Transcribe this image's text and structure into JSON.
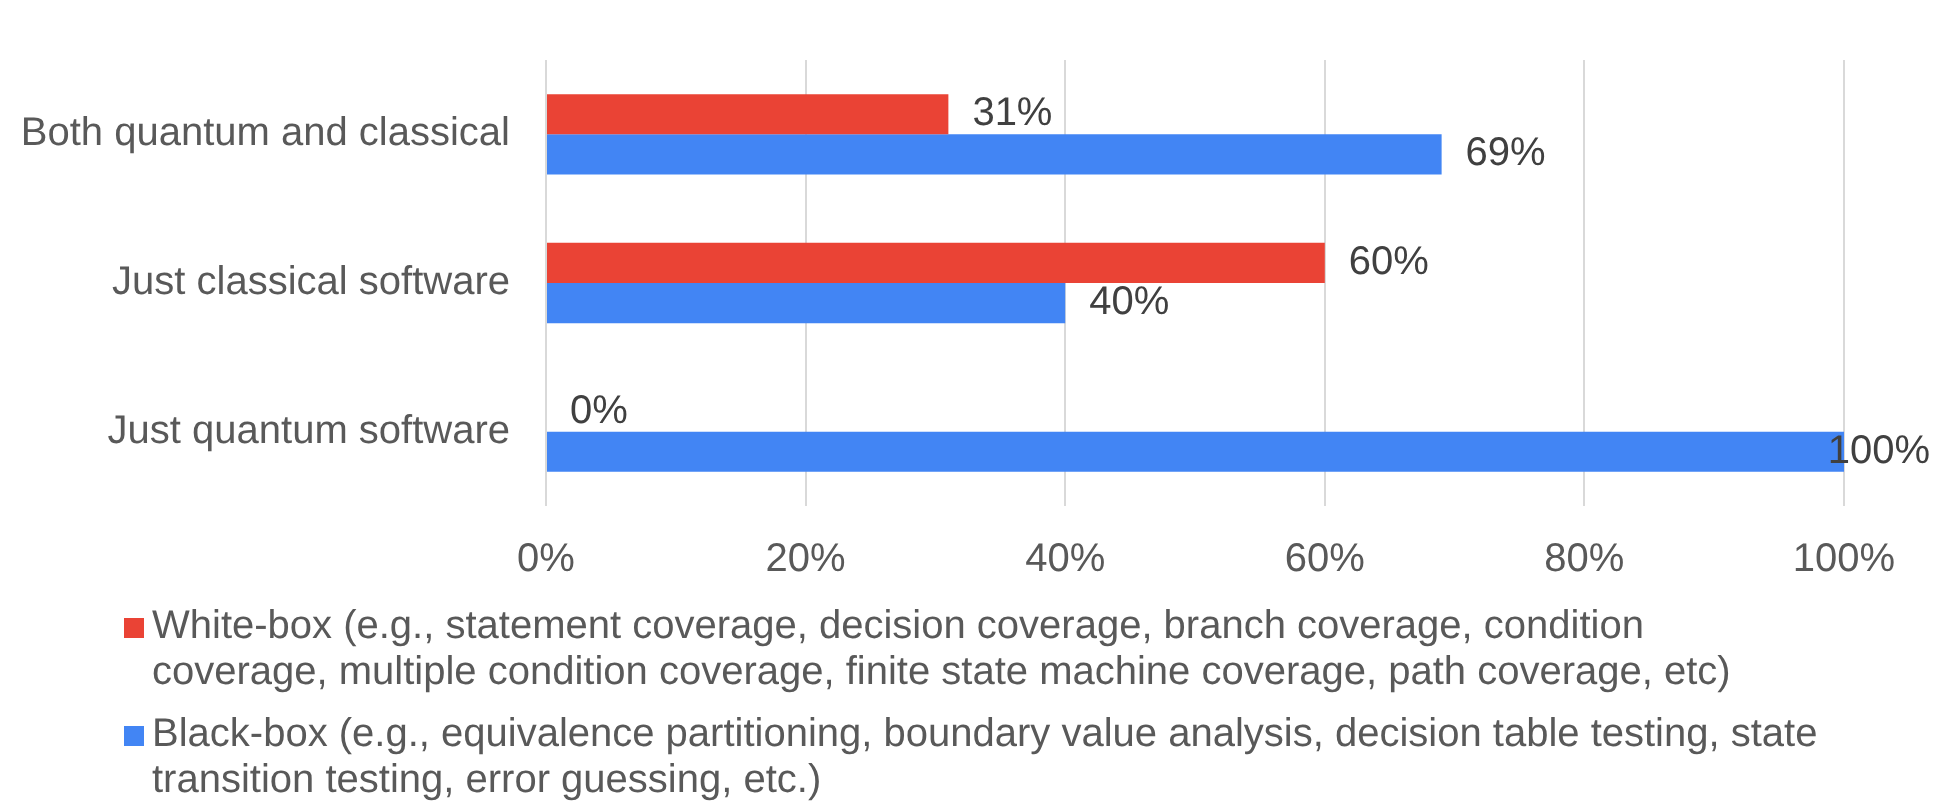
{
  "chart_data": {
    "type": "bar",
    "orientation": "horizontal",
    "categories": [
      "Both quantum and classical",
      "Just classical software",
      "Just quantum software"
    ],
    "series": [
      {
        "name": "White-box (e.g., statement coverage, decision coverage, branch coverage, condition coverage, multiple condition coverage, finite state machine coverage, path coverage, etc)",
        "color": "#ea4335",
        "values": [
          31,
          60,
          0
        ],
        "value_labels": [
          "31%",
          "60%",
          "0%"
        ]
      },
      {
        "name": "Black-box (e.g., equivalence partitioning, boundary value analysis, decision table testing, state transition testing, error guessing, etc.)",
        "color": "#4285f4",
        "values": [
          69,
          40,
          100
        ],
        "value_labels": [
          "69%",
          "40%",
          "100%"
        ]
      }
    ],
    "xlim": [
      0,
      100
    ],
    "xticks": [
      {
        "value": 0,
        "label": "0%"
      },
      {
        "value": 20,
        "label": "20%"
      },
      {
        "value": 40,
        "label": "40%"
      },
      {
        "value": 60,
        "label": "60%"
      },
      {
        "value": 80,
        "label": "80%"
      },
      {
        "value": 100,
        "label": "100%"
      }
    ],
    "grid": "x",
    "legend": "bottom"
  }
}
